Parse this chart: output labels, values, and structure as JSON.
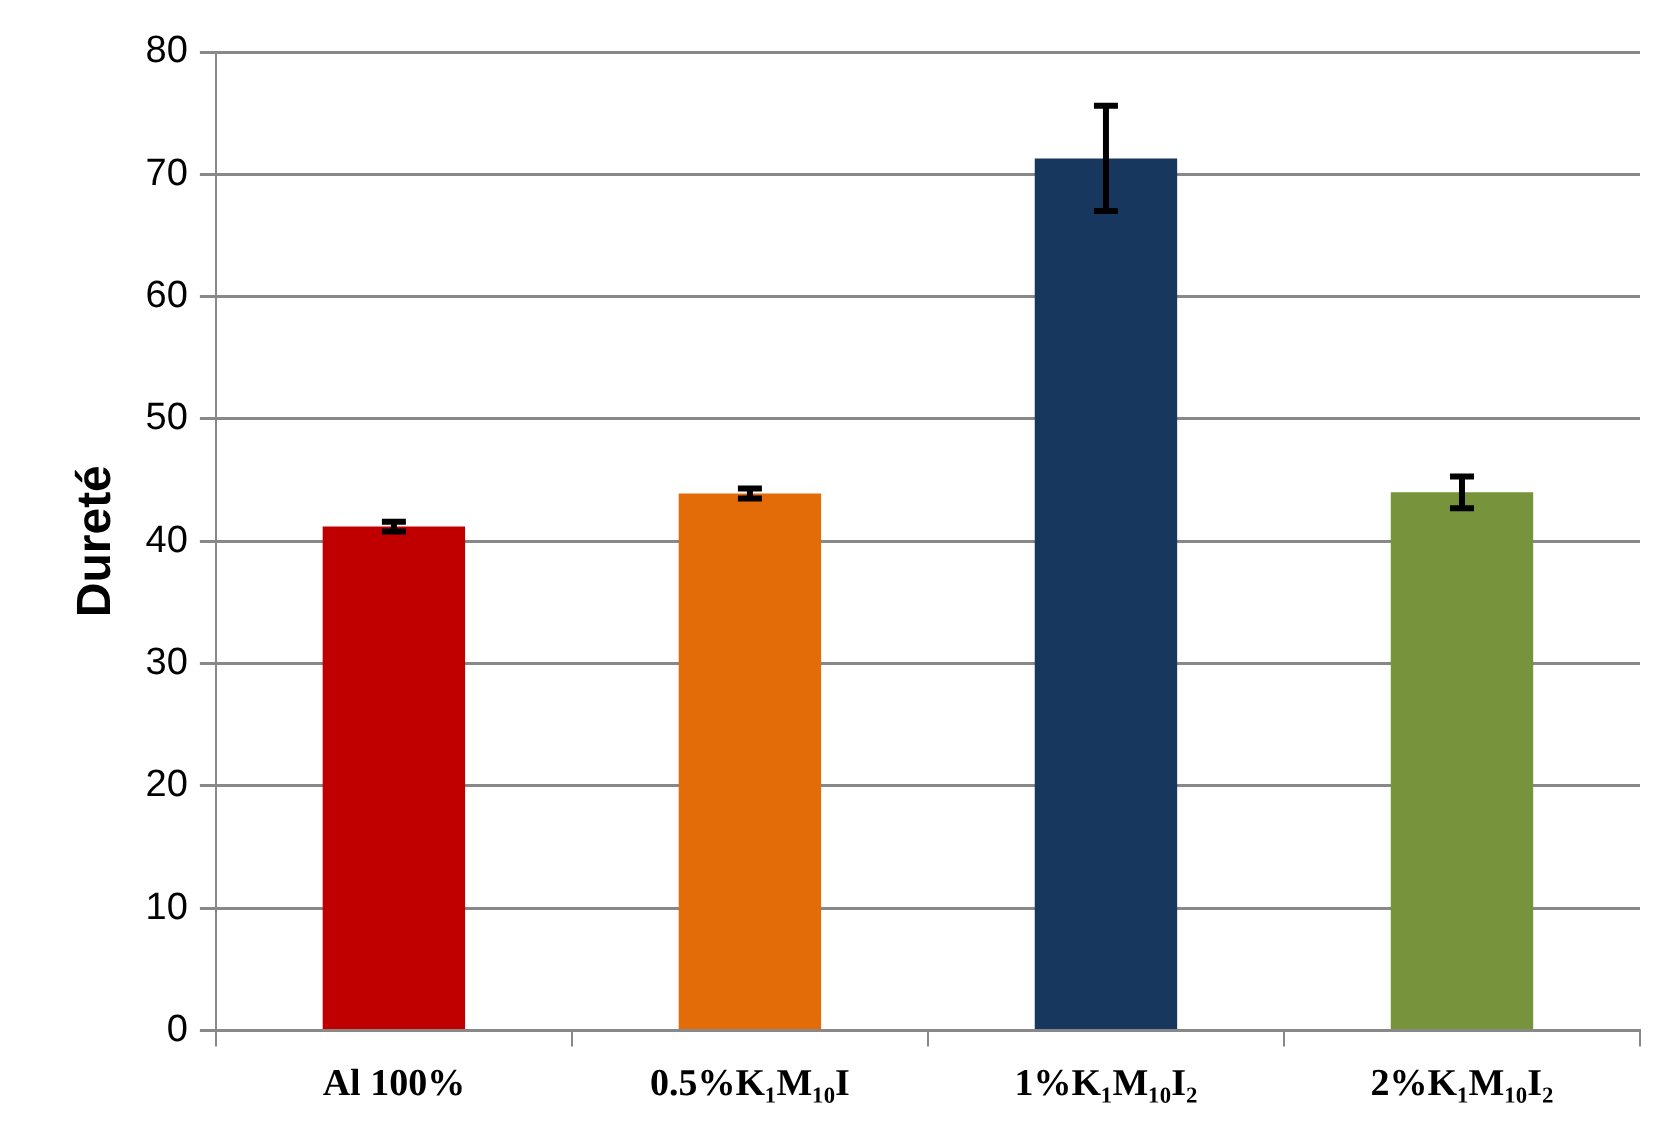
{
  "chart_data": {
    "type": "bar",
    "ylabel": "Dureté",
    "categories": [
      "Al 100%",
      "0.5%K₁M₁₀I",
      "1%K₁M₁₀I₂",
      "2%K₁M₁₀I₂"
    ],
    "values": [
      41.2,
      43.9,
      71.3,
      44.0
    ],
    "colors": [
      "#c00000",
      "#e36c09",
      "#17375e",
      "#77933c"
    ],
    "errors": [
      0.4,
      0.4,
      4.3,
      1.3
    ],
    "ylim": [
      0,
      80
    ],
    "yticks": [
      0,
      10,
      20,
      30,
      40,
      50,
      60,
      70,
      80
    ],
    "grid": "y",
    "legend": false
  }
}
